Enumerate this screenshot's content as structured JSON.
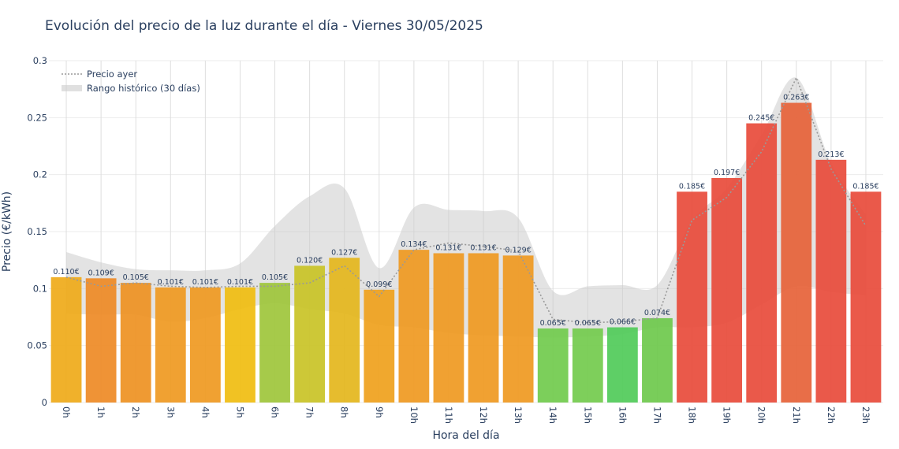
{
  "chart_data": {
    "type": "bar",
    "title": "Evolución del precio de la luz durante el día - Viernes 30/05/2025",
    "xlabel": "Hora del día",
    "ylabel": "Precio (€/kWh)",
    "ylim": [
      0,
      0.3
    ],
    "yticks": [
      "0",
      "0.05",
      "0.1",
      "0.15",
      "0.2",
      "0.25",
      "0.3"
    ],
    "categories": [
      "0h",
      "1h",
      "2h",
      "3h",
      "4h",
      "5h",
      "6h",
      "7h",
      "8h",
      "9h",
      "10h",
      "11h",
      "12h",
      "13h",
      "14h",
      "15h",
      "16h",
      "17h",
      "18h",
      "19h",
      "20h",
      "21h",
      "22h",
      "23h"
    ],
    "values": [
      0.11,
      0.109,
      0.105,
      0.101,
      0.101,
      0.101,
      0.105,
      0.12,
      0.127,
      0.099,
      0.134,
      0.131,
      0.131,
      0.129,
      0.065,
      0.065,
      0.066,
      0.074,
      0.185,
      0.197,
      0.245,
      0.263,
      0.213,
      0.185
    ],
    "value_labels": [
      "0.110€",
      "0.109€",
      "0.105€",
      "0.101€",
      "0.101€",
      "0.101€",
      "0.105€",
      "0.120€",
      "0.127€",
      "0.099€",
      "0.134€",
      "0.131€",
      "0.131€",
      "0.129€",
      "0.065€",
      "0.065€",
      "0.066€",
      "0.074€",
      "0.185€",
      "0.197€",
      "0.245€",
      "0.263€",
      "0.213€",
      "0.185€"
    ],
    "bar_colors": [
      "#efab1b",
      "#ee8b27",
      "#ee9224",
      "#ef9a22",
      "#ef9a22",
      "#f0bd12",
      "#9fc63c",
      "#c9c428",
      "#e4b71e",
      "#efa11e",
      "#ef9a22",
      "#ef9a22",
      "#ef9a22",
      "#ef9a22",
      "#72cb4f",
      "#74cb4f",
      "#52cb5a",
      "#6fc94e",
      "#e84c3c",
      "#e84c3c",
      "#e84c3c",
      "#e6633a",
      "#e84c3c",
      "#e84c3c"
    ],
    "series": [
      {
        "name": "Precio ayer",
        "style": "dotted-line",
        "color": "#999999",
        "values": [
          0.11,
          0.102,
          0.105,
          0.102,
          0.101,
          0.102,
          0.102,
          0.105,
          0.12,
          0.093,
          0.134,
          0.14,
          0.137,
          0.133,
          0.073,
          0.07,
          0.071,
          0.074,
          0.16,
          0.18,
          0.22,
          0.285,
          0.205,
          0.155
        ]
      },
      {
        "name": "Rango histórico (30 días)",
        "style": "band",
        "color": "#cccccc",
        "upper": [
          0.132,
          0.123,
          0.117,
          0.116,
          0.116,
          0.122,
          0.155,
          0.181,
          0.188,
          0.118,
          0.171,
          0.169,
          0.168,
          0.162,
          0.098,
          0.102,
          0.103,
          0.103,
          0.16,
          0.188,
          0.235,
          0.285,
          0.21,
          0.165
        ],
        "lower": [
          0.078,
          0.077,
          0.077,
          0.071,
          0.074,
          0.082,
          0.087,
          0.082,
          0.078,
          0.068,
          0.066,
          0.061,
          0.059,
          0.058,
          0.057,
          0.058,
          0.06,
          0.066,
          0.066,
          0.07,
          0.086,
          0.102,
          0.097,
          0.094
        ]
      }
    ],
    "legend": {
      "placement": "top-left"
    },
    "grid": true
  }
}
